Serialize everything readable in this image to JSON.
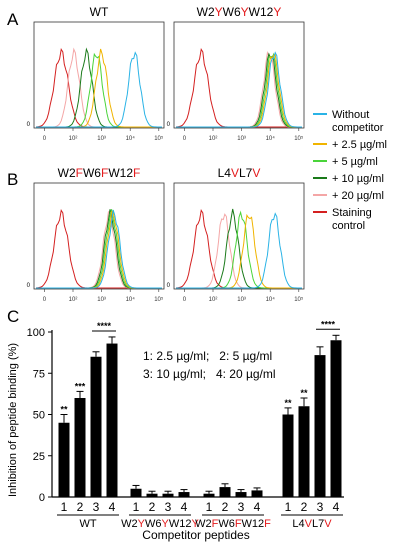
{
  "panels": {
    "A": "A",
    "B": "B",
    "C": "C"
  },
  "flow_titles": [
    {
      "segments": [
        {
          "t": "WT",
          "c": "#000000"
        }
      ]
    },
    {
      "segments": [
        {
          "t": "W2",
          "c": "#000000"
        },
        {
          "t": "Y",
          "c": "#e41a1c"
        },
        {
          "t": "W6",
          "c": "#000000"
        },
        {
          "t": "Y",
          "c": "#e41a1c"
        },
        {
          "t": "W12",
          "c": "#000000"
        },
        {
          "t": "Y",
          "c": "#e41a1c"
        }
      ]
    },
    {
      "segments": [
        {
          "t": "W2",
          "c": "#000000"
        },
        {
          "t": "F",
          "c": "#e41a1c"
        },
        {
          "t": "W6",
          "c": "#000000"
        },
        {
          "t": "F",
          "c": "#e41a1c"
        },
        {
          "t": "W12",
          "c": "#000000"
        },
        {
          "t": "F",
          "c": "#e41a1c"
        }
      ]
    },
    {
      "segments": [
        {
          "t": "L4",
          "c": "#000000"
        },
        {
          "t": "V",
          "c": "#e41a1c"
        },
        {
          "t": "L7",
          "c": "#000000"
        },
        {
          "t": "V",
          "c": "#e41a1c"
        }
      ]
    }
  ],
  "flow_axis": {
    "y_tick": "0",
    "x_ticks": [
      "0",
      "10²",
      "10³",
      "10⁴",
      "10⁵"
    ]
  },
  "legend": [
    {
      "lines": [
        "Without",
        "competitor"
      ],
      "color": "#2ab3e6"
    },
    {
      "lines": [
        "+ 2.5 µg/ml"
      ],
      "color": "#f0b400"
    },
    {
      "lines": [
        "+ 5 µg/ml"
      ],
      "color": "#4ad43a"
    },
    {
      "lines": [
        "+ 10 µg/ml"
      ],
      "color": "#1a7a1a"
    },
    {
      "lines": [
        "+ 20 µg/ml"
      ],
      "color": "#f4a6a6"
    },
    {
      "lines": [
        "Staining",
        "control"
      ],
      "color": "#d42020"
    }
  ],
  "bar_legend": [
    "1: 2.5 µg/ml;   2: 5 µg/ml",
    "3: 10 µg/ml;   4: 20 µg/ml"
  ],
  "chart_data": {
    "type": "bar",
    "ylabel": "Inhibition of peptide binding (%)",
    "xlabel": "Competitor peptides",
    "ylim": [
      0,
      100
    ],
    "yticks": [
      0,
      25,
      50,
      75,
      100
    ],
    "groups": [
      {
        "label_segments": [
          {
            "t": "WT",
            "c": "#000000"
          }
        ],
        "categories": [
          "1",
          "2",
          "3",
          "4"
        ],
        "values": [
          45,
          60,
          85,
          93
        ],
        "errors": [
          5,
          4,
          3,
          4
        ],
        "annotations": [
          "**",
          "***",
          "",
          ""
        ],
        "bracket": "****"
      },
      {
        "label_segments": [
          {
            "t": "W2",
            "c": "#000000"
          },
          {
            "t": "Y",
            "c": "#e41a1c"
          },
          {
            "t": "W6",
            "c": "#000000"
          },
          {
            "t": "Y",
            "c": "#e41a1c"
          },
          {
            "t": "W12",
            "c": "#000000"
          },
          {
            "t": "Y",
            "c": "#e41a1c"
          }
        ],
        "categories": [
          "1",
          "2",
          "3",
          "4"
        ],
        "values": [
          5,
          2,
          2,
          3
        ],
        "errors": [
          2,
          1.5,
          1.5,
          1.5
        ],
        "annotations": [
          "",
          "",
          "",
          ""
        ],
        "bracket": ""
      },
      {
        "label_segments": [
          {
            "t": "W2",
            "c": "#000000"
          },
          {
            "t": "F",
            "c": "#e41a1c"
          },
          {
            "t": "W6",
            "c": "#000000"
          },
          {
            "t": "F",
            "c": "#e41a1c"
          },
          {
            "t": "W12",
            "c": "#000000"
          },
          {
            "t": "F",
            "c": "#e41a1c"
          }
        ],
        "categories": [
          "1",
          "2",
          "3",
          "4"
        ],
        "values": [
          2,
          6,
          3,
          4
        ],
        "errors": [
          1.5,
          2,
          1.5,
          1.5
        ],
        "annotations": [
          "",
          "",
          "",
          ""
        ],
        "bracket": ""
      },
      {
        "label_segments": [
          {
            "t": "L4",
            "c": "#000000"
          },
          {
            "t": "V",
            "c": "#e41a1c"
          },
          {
            "t": "L7",
            "c": "#000000"
          },
          {
            "t": "V",
            "c": "#e41a1c"
          }
        ],
        "categories": [
          "1",
          "2",
          "3",
          "4"
        ],
        "values": [
          50,
          55,
          86,
          95
        ],
        "errors": [
          4,
          5,
          5,
          3
        ],
        "annotations": [
          "**",
          "**",
          "",
          ""
        ],
        "bracket": "****"
      }
    ]
  }
}
